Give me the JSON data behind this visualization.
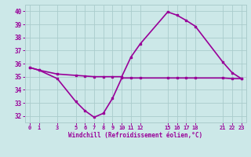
{
  "temp_x": [
    0,
    1,
    3,
    5,
    6,
    7,
    8,
    9,
    10,
    11,
    12,
    15,
    16,
    17,
    18,
    21,
    22,
    23
  ],
  "temp_y": [
    35.7,
    35.5,
    35.2,
    35.1,
    35.05,
    35.0,
    35.0,
    35.0,
    35.0,
    36.5,
    37.5,
    39.95,
    39.7,
    39.3,
    38.85,
    36.1,
    35.3,
    34.85
  ],
  "wind_x": [
    0,
    1,
    3,
    5,
    6,
    7,
    8,
    9,
    10,
    11,
    12,
    15,
    16,
    17,
    18,
    21,
    22,
    23
  ],
  "wind_y": [
    35.7,
    35.5,
    34.85,
    33.1,
    32.4,
    31.9,
    32.2,
    33.35,
    34.9,
    34.9,
    34.9,
    34.9,
    34.9,
    34.9,
    34.9,
    34.9,
    34.85,
    34.85
  ],
  "line_color": "#990099",
  "bg_color": "#cce8e8",
  "grid_color": "#aacccc",
  "xlabel": "Windchill (Refroidissement éolien,°C)",
  "xticks": [
    0,
    1,
    3,
    5,
    6,
    7,
    8,
    9,
    10,
    11,
    12,
    15,
    16,
    17,
    18,
    21,
    22,
    23
  ],
  "yticks": [
    32,
    33,
    34,
    35,
    36,
    37,
    38,
    39,
    40
  ],
  "ylim": [
    31.5,
    40.5
  ],
  "xlim": [
    -0.5,
    23.5
  ],
  "figsize": [
    3.2,
    2.0
  ],
  "dpi": 100
}
